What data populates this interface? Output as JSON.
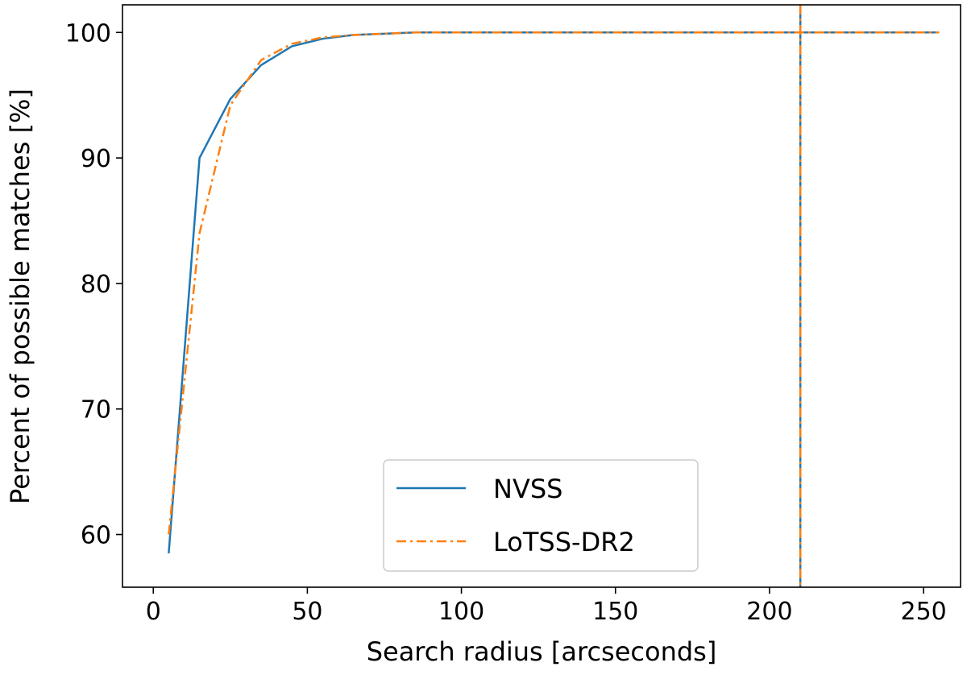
{
  "chart_data": {
    "type": "line",
    "xlabel": "Search radius [arcseconds]",
    "ylabel": "Percent of possible matches [%]",
    "xlim": [
      -10,
      262
    ],
    "ylim": [
      55.8,
      102.2
    ],
    "xticks": [
      0,
      50,
      100,
      150,
      200,
      250
    ],
    "yticks": [
      60,
      70,
      80,
      90,
      100
    ],
    "grid": false,
    "legend_position": "lower-center",
    "series": [
      {
        "name": "NVSS",
        "color": "#1f77b4",
        "style": "solid",
        "x": [
          5,
          15,
          25,
          35,
          45,
          55,
          65,
          75,
          85,
          95,
          105,
          115,
          125,
          135,
          145,
          155,
          165,
          175,
          185,
          195,
          205,
          215,
          225,
          235,
          245,
          255
        ],
        "y": [
          58.5,
          90.0,
          94.7,
          97.4,
          98.9,
          99.5,
          99.8,
          99.9,
          100.0,
          100.0,
          100.0,
          100.0,
          100.0,
          100.0,
          100.0,
          100.0,
          100.0,
          100.0,
          100.0,
          100.0,
          100.0,
          100.0,
          100.0,
          100.0,
          100.0,
          100.0
        ]
      },
      {
        "name": "LoTSS-DR2",
        "color": "#ff7f0e",
        "style": "dashdot",
        "x": [
          5,
          15,
          25,
          35,
          45,
          55,
          65,
          75,
          85,
          95,
          105,
          115,
          125,
          135,
          145,
          155,
          165,
          175,
          185,
          195,
          205,
          215,
          225,
          235,
          245,
          255
        ],
        "y": [
          60.0,
          84.0,
          94.2,
          97.8,
          99.1,
          99.6,
          99.8,
          99.9,
          100.0,
          100.0,
          100.0,
          100.0,
          100.0,
          100.0,
          100.0,
          100.0,
          100.0,
          100.0,
          100.0,
          100.0,
          100.0,
          100.0,
          100.0,
          100.0,
          100.0,
          100.0
        ]
      }
    ],
    "vlines": [
      {
        "x": 210,
        "color": "#1f77b4",
        "style": "solid"
      },
      {
        "x": 210,
        "color": "#ff7f0e",
        "style": "dashdot"
      }
    ]
  }
}
